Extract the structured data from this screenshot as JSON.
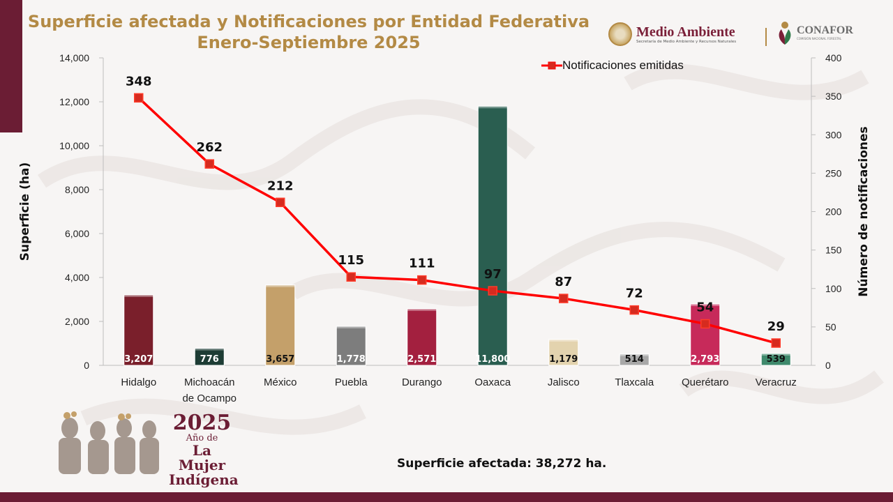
{
  "title_line1": "Superficie afectada y Notificaciones por Entidad Federativa",
  "title_line2": "Enero-Septiembre 2025",
  "logos": {
    "medio_ambiente": "Medio Ambiente",
    "medio_ambiente_sub": "Secretaría de Medio Ambiente y Recursos Naturales",
    "conafor": "CONAFOR",
    "conafor_sub": "COMISIÓN NACIONAL FORESTAL",
    "year": "2025",
    "year_sub": "Año de",
    "year_line2": "La Mujer",
    "year_line3": "Indígena"
  },
  "total_text": "Superficie afectada: 38,272 ha.",
  "colors": {
    "brand": "#6b1d34",
    "gold": "#b38a45",
    "line": "#ff0000",
    "marker": "#d62b1f"
  },
  "chart_data": {
    "type": "bar",
    "categories": [
      "Hidalgo",
      "Michoacán de Ocampo",
      "México",
      "Puebla",
      "Durango",
      "Oaxaca",
      "Jalisco",
      "Tlaxcala",
      "Querétaro",
      "Veracruz"
    ],
    "category_lines": [
      [
        "Hidalgo"
      ],
      [
        "Michoacán",
        "de Ocampo"
      ],
      [
        "México"
      ],
      [
        "Puebla"
      ],
      [
        "Durango"
      ],
      [
        "Oaxaca"
      ],
      [
        "Jalisco"
      ],
      [
        "Tlaxcala"
      ],
      [
        "Querétaro"
      ],
      [
        "Veracruz"
      ]
    ],
    "bar_values": [
      3207,
      776,
      3657,
      1778,
      2571,
      11800,
      1179,
      514,
      2793,
      539
    ],
    "bar_labels": [
      "3,207",
      "776",
      "3,657",
      "1,778",
      "2,571",
      "11,800",
      "1,179",
      "514",
      "2,793",
      "539"
    ],
    "bar_colors": [
      "#7a1f2b",
      "#1d3c34",
      "#c4a06a",
      "#7d7d7d",
      "#a3203f",
      "#2a5e50",
      "#e3d3ae",
      "#a8a8a8",
      "#c72a5a",
      "#3f8a6c"
    ],
    "bar_label_colors": [
      "#ffffff",
      "#ffffff",
      "#111111",
      "#ffffff",
      "#ffffff",
      "#ffffff",
      "#111111",
      "#111111",
      "#ffffff",
      "#111111"
    ],
    "line_series": {
      "name": "Notificaciones emitidas",
      "values": [
        348,
        262,
        212,
        115,
        111,
        97,
        87,
        72,
        54,
        29
      ]
    },
    "ylabel": "Superficie (ha)",
    "y2label": "Número de notificaciones",
    "ylim": [
      0,
      14000
    ],
    "y2lim": [
      0,
      400
    ],
    "yticks": [
      "0",
      "2,000",
      "4,000",
      "6,000",
      "8,000",
      "10,000",
      "12,000",
      "14,000"
    ],
    "y2ticks": [
      "0",
      "50",
      "100",
      "150",
      "200",
      "250",
      "300",
      "350",
      "400"
    ],
    "legend_position": "top-right",
    "grid": false
  }
}
